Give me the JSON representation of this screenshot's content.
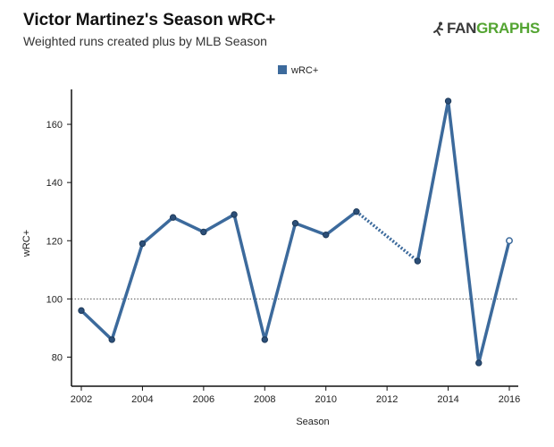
{
  "header": {
    "title": "Victor Martinez's Season wRC+",
    "subtitle": "Weighted runs created plus by MLB Season",
    "logo_fan": "FAN",
    "logo_graphs": "GRAPHS"
  },
  "chart_data": {
    "type": "line",
    "title": "Victor Martinez's Season wRC+",
    "subtitle": "Weighted runs created plus by MLB Season",
    "xlabel": "Season",
    "ylabel": "wRC+",
    "xlim": [
      2002,
      2016
    ],
    "ylim": [
      70,
      172
    ],
    "x_ticks": [
      2002,
      2004,
      2006,
      2008,
      2010,
      2012,
      2014,
      2016
    ],
    "y_ticks": [
      80,
      100,
      120,
      140,
      160
    ],
    "reference_line": {
      "y": 100,
      "style": "dotted"
    },
    "legend": {
      "position": "top-center",
      "entries": [
        "wRC+"
      ]
    },
    "series": [
      {
        "name": "wRC+",
        "color": "#3c6a9c",
        "points": [
          {
            "x": 2002,
            "y": 96
          },
          {
            "x": 2003,
            "y": 86
          },
          {
            "x": 2004,
            "y": 119
          },
          {
            "x": 2005,
            "y": 128
          },
          {
            "x": 2006,
            "y": 123
          },
          {
            "x": 2007,
            "y": 129
          },
          {
            "x": 2008,
            "y": 86
          },
          {
            "x": 2009,
            "y": 126
          },
          {
            "x": 2010,
            "y": 122
          },
          {
            "x": 2011,
            "y": 130
          },
          {
            "x": 2013,
            "y": 113
          },
          {
            "x": 2014,
            "y": 168
          },
          {
            "x": 2015,
            "y": 78
          },
          {
            "x": 2016,
            "y": 120,
            "hollow": true
          }
        ],
        "gap": {
          "from": 2011,
          "to": 2013,
          "style": "dotted"
        }
      }
    ]
  }
}
